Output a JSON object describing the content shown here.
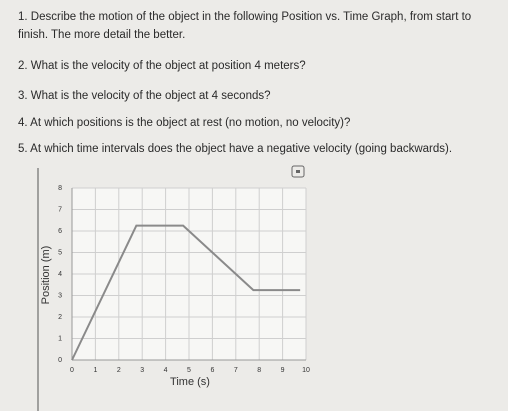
{
  "questions": [
    "1. Describe the motion of the object in the following Position vs. Time Graph, from start to finish. The more detail the better.",
    "2. What is the velocity of the object at position 4 meters?",
    "3. What is the velocity of the object at 4 seconds?",
    "4. At which positions is the object at rest (no motion, no velocity)?",
    "5. At which time intervals does the object have a negative velocity (going backwards)."
  ],
  "chart_data": {
    "type": "line",
    "x_label": "Time (s)",
    "y_label": "Position (m)",
    "x": [
      0,
      2.75,
      4.75,
      7.75,
      9.75
    ],
    "series": [
      {
        "color": "#8a8a8a",
        "values": [
          0,
          6.25,
          6.25,
          3.25,
          3.25
        ]
      }
    ],
    "xlim": [
      0,
      10
    ],
    "ylim": [
      0,
      8
    ],
    "xticks": [
      0,
      1,
      2,
      3,
      4,
      5,
      6,
      7,
      8,
      9,
      10
    ],
    "yticks": [
      0,
      1,
      2,
      3,
      4,
      5,
      6,
      7,
      8
    ],
    "grid": true
  }
}
